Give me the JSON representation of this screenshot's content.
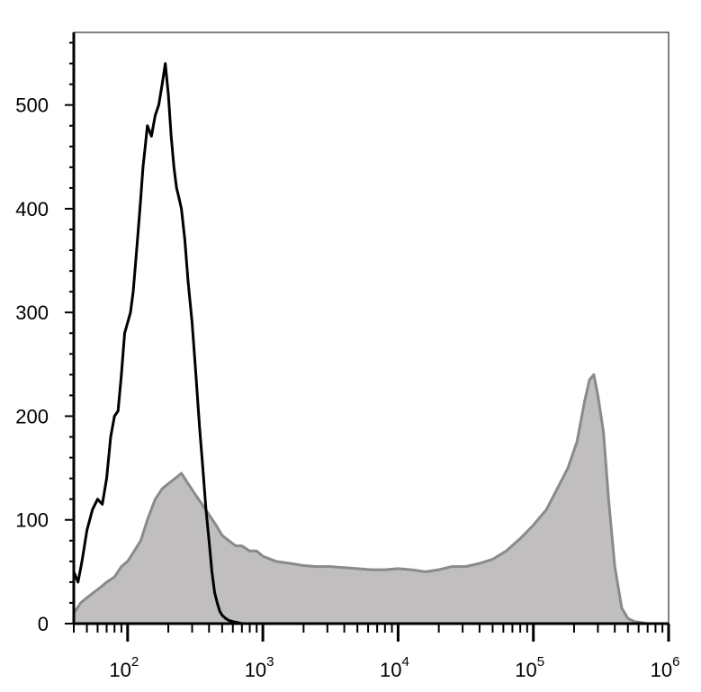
{
  "chart_data": {
    "type": "area",
    "title": "",
    "xlabel": "",
    "ylabel": "",
    "x_scale": "log",
    "xlim": [
      40,
      1000000
    ],
    "ylim": [
      0,
      570
    ],
    "grid": false,
    "legend": "none",
    "x_ticks": [
      {
        "base": "10",
        "exp": "2",
        "value": 100
      },
      {
        "base": "10",
        "exp": "3",
        "value": 1000
      },
      {
        "base": "10",
        "exp": "4",
        "value": 10000
      },
      {
        "base": "10",
        "exp": "5",
        "value": 100000
      },
      {
        "base": "10",
        "exp": "6",
        "value": 1000000
      }
    ],
    "y_ticks": [
      {
        "label": "0",
        "value": 0
      },
      {
        "label": "100",
        "value": 100
      },
      {
        "label": "200",
        "value": 200
      },
      {
        "label": "300",
        "value": 300
      },
      {
        "label": "400",
        "value": 400
      },
      {
        "label": "500",
        "value": 500
      }
    ],
    "series": [
      {
        "style": "filled",
        "fill": "#c0bebe",
        "stroke": "#8a8a8a",
        "x": [
          40,
          45,
          50,
          56,
          63,
          70,
          80,
          90,
          100,
          112,
          125,
          140,
          160,
          180,
          200,
          225,
          250,
          280,
          315,
          355,
          400,
          450,
          500,
          560,
          630,
          700,
          800,
          900,
          1000,
          1250,
          1600,
          2000,
          2500,
          3150,
          4000,
          5000,
          6300,
          8000,
          10000,
          12500,
          16000,
          20000,
          25000,
          31500,
          40000,
          50000,
          63000,
          80000,
          100000,
          125000,
          150000,
          180000,
          210000,
          240000,
          260000,
          280000,
          300000,
          330000,
          360000,
          400000,
          450000,
          500000,
          560000,
          630000,
          700000,
          800000,
          900000,
          1000000
        ],
        "y": [
          10,
          20,
          25,
          30,
          35,
          40,
          45,
          55,
          60,
          70,
          80,
          100,
          120,
          130,
          135,
          140,
          145,
          135,
          125,
          115,
          105,
          95,
          85,
          80,
          75,
          75,
          70,
          70,
          65,
          60,
          58,
          56,
          55,
          55,
          54,
          53,
          52,
          52,
          53,
          52,
          50,
          52,
          55,
          55,
          58,
          62,
          70,
          82,
          95,
          110,
          130,
          150,
          175,
          215,
          235,
          240,
          220,
          185,
          120,
          55,
          15,
          5,
          2,
          1,
          0,
          0,
          0,
          0
        ]
      },
      {
        "style": "line",
        "stroke": "#000000",
        "x": [
          40,
          43,
          46,
          50,
          55,
          60,
          65,
          70,
          75,
          80,
          85,
          90,
          95,
          100,
          105,
          110,
          115,
          120,
          125,
          130,
          135,
          140,
          150,
          160,
          170,
          180,
          190,
          200,
          210,
          220,
          230,
          240,
          250,
          265,
          280,
          300,
          320,
          340,
          360,
          380,
          400,
          420,
          440,
          460,
          480,
          500,
          530,
          560,
          600,
          650,
          700,
          750,
          800,
          900,
          1000,
          2000,
          4000,
          10000,
          20000,
          100000,
          200000,
          1000000
        ],
        "y": [
          50,
          40,
          60,
          90,
          110,
          120,
          115,
          140,
          180,
          200,
          205,
          240,
          280,
          290,
          300,
          320,
          350,
          380,
          410,
          440,
          460,
          480,
          470,
          490,
          500,
          520,
          540,
          510,
          470,
          440,
          420,
          410,
          400,
          370,
          330,
          290,
          240,
          190,
          150,
          110,
          80,
          50,
          30,
          20,
          12,
          8,
          5,
          3,
          2,
          1,
          0,
          0,
          0,
          0,
          0,
          0,
          0,
          0,
          0,
          0,
          0,
          0
        ]
      }
    ]
  }
}
